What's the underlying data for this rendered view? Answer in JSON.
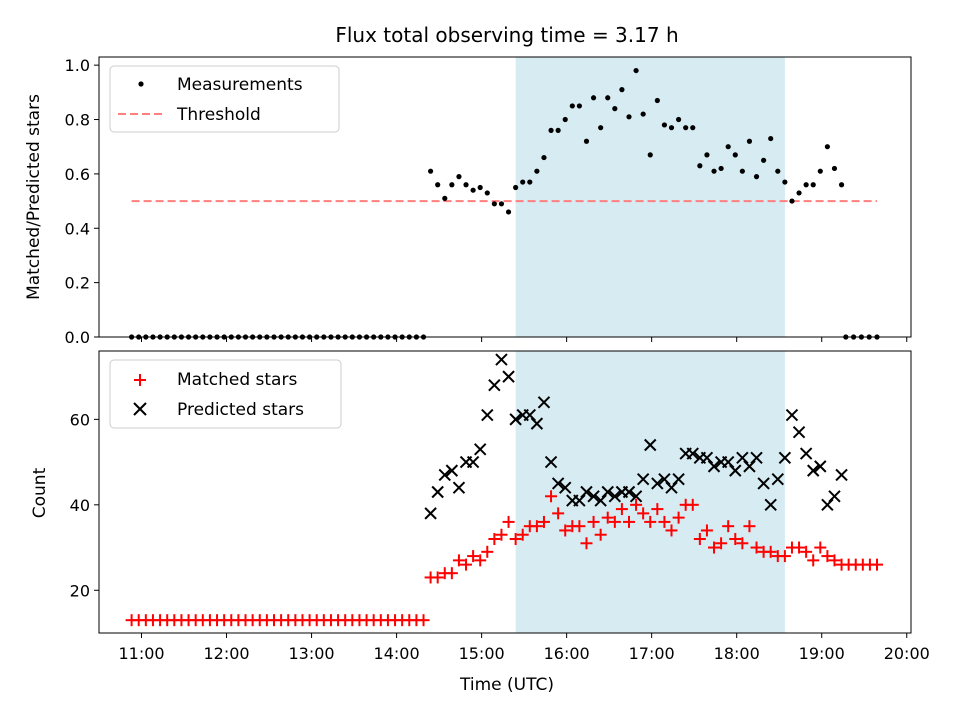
{
  "title": "Flux total observing time = 3.17 h",
  "xlabel": "Time (UTC)",
  "x_ticks": [
    "11:00",
    "12:00",
    "13:00",
    "14:00",
    "15:00",
    "16:00",
    "17:00",
    "18:00",
    "19:00",
    "20:00"
  ],
  "colors": {
    "measurements": "#000000",
    "threshold": "#ff7f7f",
    "matched": "#ff0000",
    "predicted": "#000000",
    "span": "#add8e6"
  },
  "chart_data": [
    {
      "type": "scatter",
      "ylabel": "Matched/Predicted stars",
      "xlim": [
        "10:30",
        "20:03"
      ],
      "ylim": [
        0,
        1.03
      ],
      "y_ticks": [
        "0.0",
        "0.2",
        "0.4",
        "0.6",
        "0.8",
        "1.0"
      ],
      "shaded_span": [
        "15:24",
        "18:34"
      ],
      "legend": {
        "placement": "upper-left",
        "entries": [
          "Measurements",
          "Threshold"
        ]
      },
      "threshold": {
        "name": "Threshold",
        "y": 0.5,
        "x_range": [
          "10:53",
          "19:39"
        ]
      },
      "measurements": {
        "name": "Measurements",
        "zero_segments": [
          {
            "start": "10:53",
            "end": "14:19",
            "n": 42
          },
          {
            "start": "19:17",
            "end": "19:39",
            "n": 5
          }
        ],
        "points": [
          [
            "14:24",
            0.61
          ],
          [
            "14:29",
            0.56
          ],
          [
            "14:34",
            0.51
          ],
          [
            "14:39",
            0.56
          ],
          [
            "14:44",
            0.59
          ],
          [
            "14:49",
            0.56
          ],
          [
            "14:54",
            0.54
          ],
          [
            "14:59",
            0.55
          ],
          [
            "15:04",
            0.53
          ],
          [
            "15:09",
            0.49
          ],
          [
            "15:14",
            0.49
          ],
          [
            "15:19",
            0.46
          ],
          [
            "15:24",
            0.55
          ],
          [
            "15:29",
            0.57
          ],
          [
            "15:34",
            0.57
          ],
          [
            "15:39",
            0.61
          ],
          [
            "15:44",
            0.66
          ],
          [
            "15:49",
            0.76
          ],
          [
            "15:54",
            0.76
          ],
          [
            "15:59",
            0.8
          ],
          [
            "16:04",
            0.85
          ],
          [
            "16:09",
            0.85
          ],
          [
            "16:14",
            0.72
          ],
          [
            "16:19",
            0.88
          ],
          [
            "16:24",
            0.77
          ],
          [
            "16:29",
            0.88
          ],
          [
            "16:34",
            0.84
          ],
          [
            "16:39",
            0.91
          ],
          [
            "16:44",
            0.81
          ],
          [
            "16:49",
            0.98
          ],
          [
            "16:54",
            0.82
          ],
          [
            "16:59",
            0.67
          ],
          [
            "17:04",
            0.87
          ],
          [
            "17:09",
            0.78
          ],
          [
            "17:14",
            0.77
          ],
          [
            "17:19",
            0.8
          ],
          [
            "17:24",
            0.77
          ],
          [
            "17:29",
            0.77
          ],
          [
            "17:34",
            0.63
          ],
          [
            "17:39",
            0.67
          ],
          [
            "17:44",
            0.61
          ],
          [
            "17:49",
            0.62
          ],
          [
            "17:54",
            0.7
          ],
          [
            "17:59",
            0.67
          ],
          [
            "18:04",
            0.61
          ],
          [
            "18:09",
            0.72
          ],
          [
            "18:14",
            0.59
          ],
          [
            "18:19",
            0.65
          ],
          [
            "18:24",
            0.73
          ],
          [
            "18:29",
            0.61
          ],
          [
            "18:34",
            0.57
          ],
          [
            "18:39",
            0.5
          ],
          [
            "18:44",
            0.53
          ],
          [
            "18:49",
            0.56
          ],
          [
            "18:54",
            0.56
          ],
          [
            "18:59",
            0.61
          ],
          [
            "19:04",
            0.7
          ],
          [
            "19:09",
            0.62
          ],
          [
            "19:14",
            0.56
          ]
        ]
      }
    },
    {
      "type": "scatter",
      "ylabel": "Count",
      "xlim": [
        "10:30",
        "20:03"
      ],
      "ylim": [
        10,
        76
      ],
      "y_ticks": [
        "20",
        "40",
        "60"
      ],
      "shaded_span": [
        "15:24",
        "18:34"
      ],
      "legend": {
        "placement": "upper-left",
        "entries": [
          "Matched stars",
          "Predicted stars"
        ]
      },
      "matched": {
        "name": "Matched stars",
        "constant_segments": [
          {
            "start": "10:53",
            "end": "14:19",
            "n": 42,
            "value": 13
          },
          {
            "start": "19:14",
            "end": "19:39",
            "n": 6,
            "value": 26
          }
        ],
        "points": [
          [
            "14:24",
            23
          ],
          [
            "14:29",
            23
          ],
          [
            "14:34",
            24
          ],
          [
            "14:39",
            24
          ],
          [
            "14:44",
            27
          ],
          [
            "14:49",
            26
          ],
          [
            "14:54",
            28
          ],
          [
            "14:59",
            27
          ],
          [
            "15:04",
            29
          ],
          [
            "15:09",
            32
          ],
          [
            "15:14",
            33
          ],
          [
            "15:19",
            36
          ],
          [
            "15:24",
            32
          ],
          [
            "15:29",
            33
          ],
          [
            "15:34",
            35
          ],
          [
            "15:39",
            35
          ],
          [
            "15:44",
            36
          ],
          [
            "15:49",
            42
          ],
          [
            "15:54",
            38
          ],
          [
            "15:59",
            34
          ],
          [
            "16:04",
            35
          ],
          [
            "16:09",
            35
          ],
          [
            "16:14",
            31
          ],
          [
            "16:19",
            36
          ],
          [
            "16:24",
            33
          ],
          [
            "16:29",
            37
          ],
          [
            "16:34",
            36
          ],
          [
            "16:39",
            39
          ],
          [
            "16:44",
            36
          ],
          [
            "16:49",
            40
          ],
          [
            "16:54",
            38
          ],
          [
            "16:59",
            36
          ],
          [
            "17:04",
            39
          ],
          [
            "17:09",
            36
          ],
          [
            "17:14",
            34
          ],
          [
            "17:19",
            37
          ],
          [
            "17:24",
            40
          ],
          [
            "17:29",
            40
          ],
          [
            "17:34",
            32
          ],
          [
            "17:39",
            34
          ],
          [
            "17:44",
            30
          ],
          [
            "17:49",
            31
          ],
          [
            "17:54",
            35
          ],
          [
            "17:59",
            32
          ],
          [
            "18:04",
            31
          ],
          [
            "18:09",
            35
          ],
          [
            "18:14",
            30
          ],
          [
            "18:19",
            29
          ],
          [
            "18:24",
            29
          ],
          [
            "18:29",
            28
          ],
          [
            "18:34",
            28
          ],
          [
            "18:39",
            30
          ],
          [
            "18:44",
            30
          ],
          [
            "18:49",
            29
          ],
          [
            "18:54",
            27
          ],
          [
            "18:59",
            30
          ],
          [
            "19:04",
            28
          ],
          [
            "19:09",
            27
          ]
        ]
      },
      "predicted": {
        "name": "Predicted stars",
        "points": [
          [
            "14:24",
            38
          ],
          [
            "14:29",
            43
          ],
          [
            "14:34",
            47
          ],
          [
            "14:39",
            48
          ],
          [
            "14:44",
            44
          ],
          [
            "14:49",
            50
          ],
          [
            "14:54",
            50
          ],
          [
            "14:59",
            53
          ],
          [
            "15:04",
            61
          ],
          [
            "15:09",
            68
          ],
          [
            "15:14",
            74
          ],
          [
            "15:19",
            70
          ],
          [
            "15:24",
            60
          ],
          [
            "15:29",
            61
          ],
          [
            "15:34",
            61
          ],
          [
            "15:39",
            59
          ],
          [
            "15:44",
            64
          ],
          [
            "15:49",
            50
          ],
          [
            "15:54",
            45
          ],
          [
            "15:59",
            44
          ],
          [
            "16:04",
            41
          ],
          [
            "16:09",
            41
          ],
          [
            "16:14",
            43
          ],
          [
            "16:19",
            42
          ],
          [
            "16:24",
            41
          ],
          [
            "16:29",
            43
          ],
          [
            "16:34",
            42
          ],
          [
            "16:39",
            43
          ],
          [
            "16:44",
            43
          ],
          [
            "16:49",
            42
          ],
          [
            "16:54",
            46
          ],
          [
            "16:59",
            54
          ],
          [
            "17:04",
            45
          ],
          [
            "17:09",
            46
          ],
          [
            "17:14",
            44
          ],
          [
            "17:19",
            46
          ],
          [
            "17:24",
            52
          ],
          [
            "17:29",
            52
          ],
          [
            "17:34",
            51
          ],
          [
            "17:39",
            51
          ],
          [
            "17:44",
            49
          ],
          [
            "17:49",
            50
          ],
          [
            "17:54",
            50
          ],
          [
            "17:59",
            48
          ],
          [
            "18:04",
            51
          ],
          [
            "18:09",
            49
          ],
          [
            "18:14",
            51
          ],
          [
            "18:19",
            45
          ],
          [
            "18:24",
            40
          ],
          [
            "18:29",
            46
          ],
          [
            "18:34",
            51
          ],
          [
            "18:39",
            61
          ],
          [
            "18:44",
            57
          ],
          [
            "18:49",
            52
          ],
          [
            "18:54",
            48
          ],
          [
            "18:59",
            49
          ],
          [
            "19:04",
            40
          ],
          [
            "19:09",
            42
          ],
          [
            "19:14",
            47
          ]
        ]
      }
    }
  ]
}
